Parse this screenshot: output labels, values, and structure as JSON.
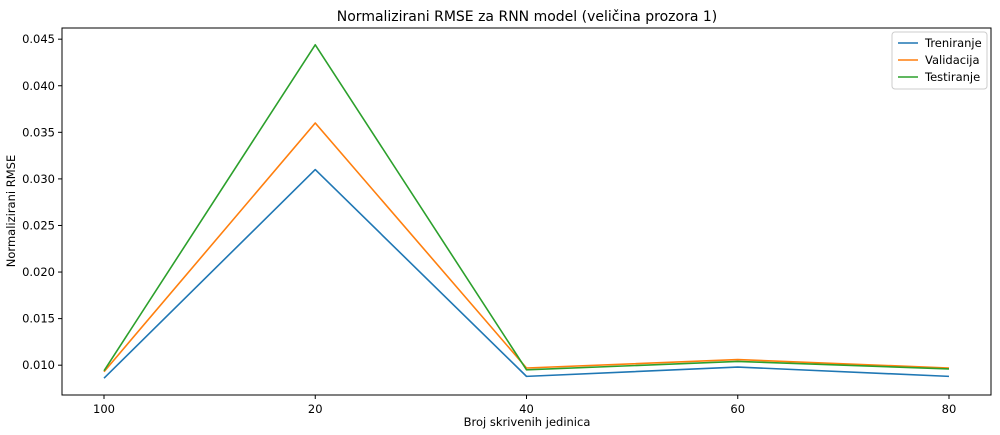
{
  "chart_data": {
    "type": "line",
    "title": "Normalizirani RMSE za RNN model (veličina prozora 1)",
    "xlabel": "Broj skrivenih jedinica",
    "ylabel": "Normalizirani RMSE",
    "categories": [
      "100",
      "20",
      "40",
      "60",
      "80"
    ],
    "ylim": [
      0.0068,
      0.0462
    ],
    "yticks": [
      "0.010",
      "0.015",
      "0.020",
      "0.025",
      "0.030",
      "0.035",
      "0.040",
      "0.045"
    ],
    "grid": false,
    "legend_position": "top-right",
    "series": [
      {
        "name": "Treniranje",
        "color": "#1f77b4",
        "values": [
          0.0086,
          0.031,
          0.0088,
          0.0098,
          0.0088
        ]
      },
      {
        "name": "Validacija",
        "color": "#ff7f0e",
        "values": [
          0.0093,
          0.036,
          0.0097,
          0.0106,
          0.0097
        ]
      },
      {
        "name": "Testiranje",
        "color": "#2ca02c",
        "values": [
          0.0094,
          0.0444,
          0.0095,
          0.0104,
          0.0096
        ]
      }
    ]
  }
}
